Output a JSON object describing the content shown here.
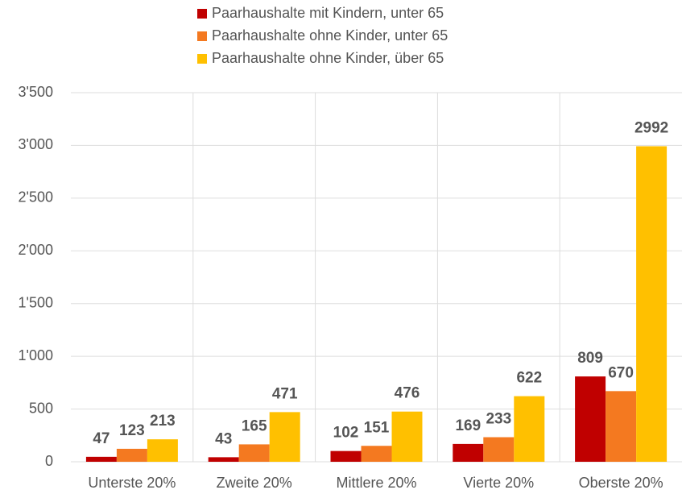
{
  "chart_data": {
    "type": "bar",
    "categories": [
      "Unterste 20%",
      "Zweite 20%",
      "Mittlere 20%",
      "Vierte 20%",
      "Oberste 20%"
    ],
    "series": [
      {
        "name": "Paarhaushalte mit Kindern, unter 65",
        "color": "#c00000",
        "values": [
          47,
          43,
          102,
          169,
          809
        ]
      },
      {
        "name": "Paarhaushalte ohne Kinder, unter 65",
        "color": "#f47920",
        "values": [
          123,
          165,
          151,
          233,
          670
        ]
      },
      {
        "name": "Paarhaushalte ohne Kinder, über 65",
        "color": "#ffc000",
        "values": [
          213,
          471,
          476,
          622,
          2992
        ]
      }
    ],
    "ylim": [
      0,
      3500
    ],
    "yticks": [
      0,
      500,
      {
        "value": 1000,
        "label": "1'000"
      },
      {
        "value": 1500,
        "label": "1'500"
      },
      {
        "value": 2000,
        "label": "2'000"
      },
      {
        "value": 2500,
        "label": "2'500"
      },
      {
        "value": 3000,
        "label": "3'000"
      },
      {
        "value": 3500,
        "label": "3'500"
      }
    ],
    "grid": true,
    "legend": "top"
  }
}
